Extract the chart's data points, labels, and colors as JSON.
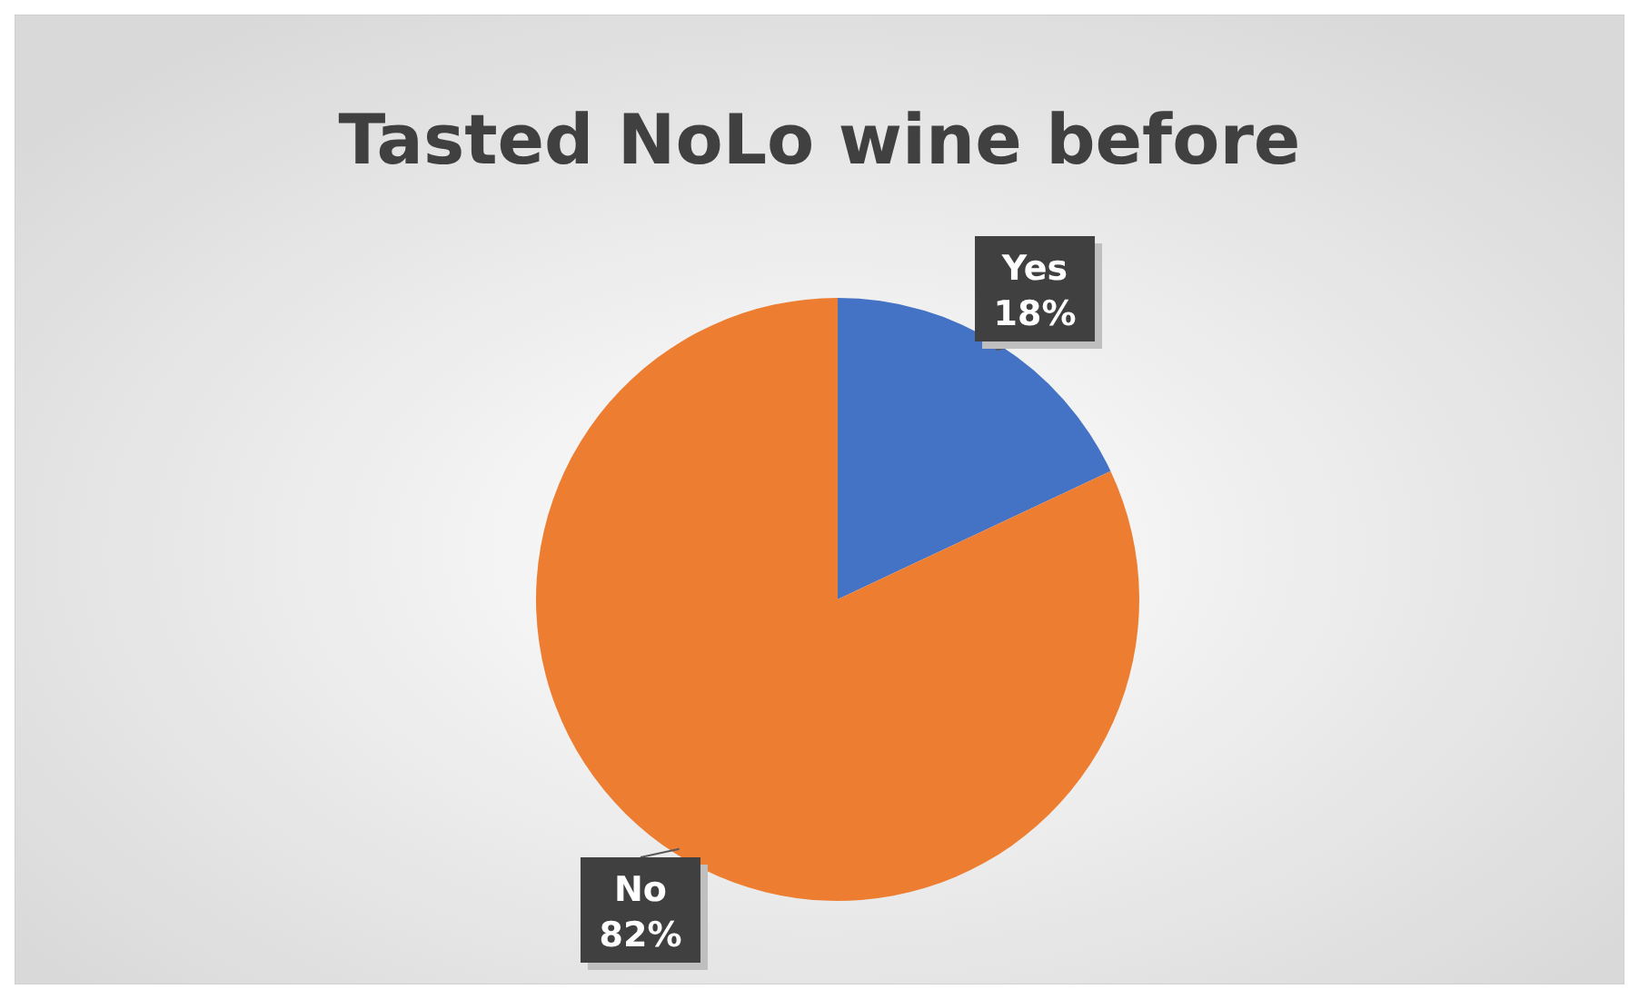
{
  "chart_data": {
    "type": "pie",
    "title": "Tasted NoLo wine before",
    "categories": [
      "Yes",
      "No"
    ],
    "values": [
      18,
      82
    ],
    "colors": [
      "#4472c4",
      "#ed7d31"
    ],
    "value_labels": [
      "18%",
      "82%"
    ]
  }
}
